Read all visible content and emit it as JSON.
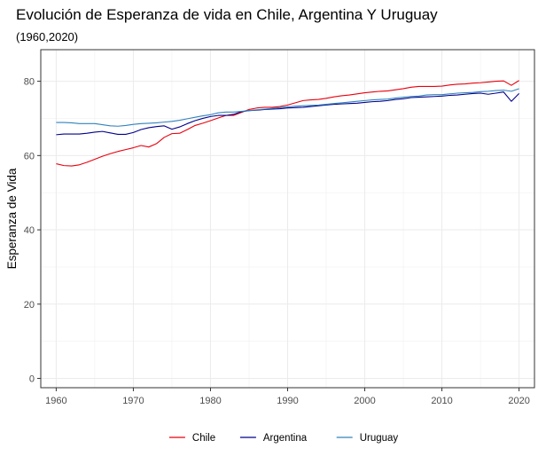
{
  "chart_data": {
    "type": "line",
    "title": "Evolución de Esperanza de vida en Chile, Argentina Y Uruguay",
    "subtitle": "(1960,2020)",
    "xlabel": "",
    "ylabel": "Esperanza de Vida",
    "xlim": [
      1958,
      2022
    ],
    "ylim": [
      -2.5,
      88.5
    ],
    "xticks": [
      1960,
      1970,
      1980,
      1990,
      2000,
      2010,
      2020
    ],
    "yticks": [
      0,
      20,
      40,
      60,
      80
    ],
    "grid": true,
    "legend_position": "bottom",
    "x": [
      1960,
      1961,
      1962,
      1963,
      1964,
      1965,
      1966,
      1967,
      1968,
      1969,
      1970,
      1971,
      1972,
      1973,
      1974,
      1975,
      1976,
      1977,
      1978,
      1979,
      1980,
      1981,
      1982,
      1983,
      1984,
      1985,
      1986,
      1987,
      1988,
      1989,
      1990,
      1991,
      1992,
      1993,
      1994,
      1995,
      1996,
      1997,
      1998,
      1999,
      2000,
      2001,
      2002,
      2003,
      2004,
      2005,
      2006,
      2007,
      2008,
      2009,
      2010,
      2011,
      2012,
      2013,
      2014,
      2015,
      2016,
      2017,
      2018,
      2019,
      2020
    ],
    "series": [
      {
        "name": "Chile",
        "color": "#e8000d",
        "values": [
          57.8,
          57.3,
          57.2,
          57.5,
          58.2,
          59.0,
          59.8,
          60.5,
          61.1,
          61.6,
          62.1,
          62.7,
          62.3,
          63.2,
          64.9,
          65.9,
          66.0,
          67.0,
          68.1,
          68.7,
          69.4,
          70.1,
          70.8,
          70.8,
          71.6,
          72.4,
          72.8,
          73.0,
          73.0,
          73.2,
          73.6,
          74.2,
          74.8,
          75.0,
          75.1,
          75.4,
          75.8,
          76.1,
          76.3,
          76.6,
          76.9,
          77.1,
          77.3,
          77.4,
          77.7,
          78.0,
          78.4,
          78.6,
          78.6,
          78.6,
          78.7,
          79.0,
          79.2,
          79.3,
          79.5,
          79.6,
          79.8,
          80.0,
          80.1,
          78.9,
          80.2
        ]
      },
      {
        "name": "Argentina",
        "color": "#00008b",
        "values": [
          65.6,
          65.8,
          65.8,
          65.8,
          66.0,
          66.3,
          66.5,
          66.1,
          65.7,
          65.7,
          66.2,
          67.0,
          67.5,
          67.8,
          68.0,
          67.1,
          67.7,
          68.6,
          69.4,
          70.0,
          70.5,
          70.8,
          70.8,
          71.1,
          71.8,
          72.1,
          72.2,
          72.4,
          72.5,
          72.6,
          72.8,
          72.9,
          73.0,
          73.2,
          73.4,
          73.6,
          73.8,
          73.9,
          74.0,
          74.1,
          74.3,
          74.5,
          74.6,
          74.8,
          75.1,
          75.3,
          75.6,
          75.7,
          75.8,
          75.9,
          76.0,
          76.2,
          76.3,
          76.5,
          76.7,
          76.8,
          76.5,
          76.8,
          77.1,
          74.6,
          76.7
        ]
      },
      {
        "name": "Uruguay",
        "color": "#3182bd",
        "values": [
          68.9,
          68.9,
          68.8,
          68.6,
          68.6,
          68.6,
          68.3,
          68.0,
          67.9,
          68.1,
          68.4,
          68.6,
          68.7,
          68.8,
          69.0,
          69.2,
          69.5,
          69.9,
          70.3,
          70.7,
          71.0,
          71.5,
          71.7,
          71.7,
          71.9,
          72.1,
          72.3,
          72.5,
          72.7,
          72.9,
          73.1,
          73.3,
          73.4,
          73.5,
          73.6,
          73.8,
          74.0,
          74.2,
          74.4,
          74.6,
          74.8,
          75.0,
          75.1,
          75.2,
          75.5,
          75.7,
          75.9,
          76.0,
          76.3,
          76.4,
          76.4,
          76.6,
          76.8,
          76.9,
          77.0,
          77.2,
          77.3,
          77.5,
          77.6,
          77.3,
          78.0
        ]
      }
    ]
  }
}
